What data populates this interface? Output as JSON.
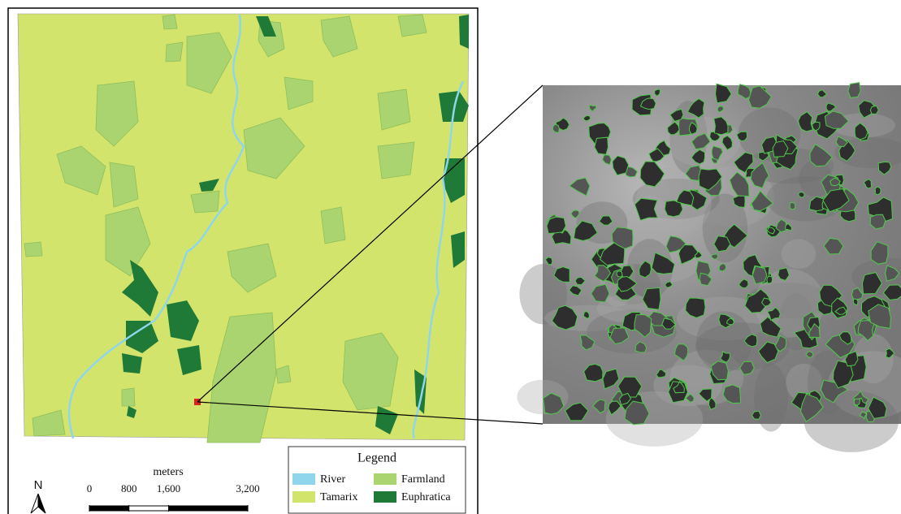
{
  "north_arrow": {
    "label": "N"
  },
  "scale_bar": {
    "unit": "meters",
    "range": [
      0,
      3200
    ],
    "ticks": [
      0,
      800,
      {
        "value": 1600,
        "label": "1,600"
      },
      {
        "value": 3200,
        "label": "3,200"
      }
    ]
  },
  "legend": {
    "title": "Legend",
    "items": [
      {
        "label": "River",
        "color": "#8fd6ec"
      },
      {
        "label": "Farmland",
        "color": "#a9d46f"
      },
      {
        "label": "Tamarix",
        "color": "#d3e46d"
      },
      {
        "label": "Euphratica",
        "color": "#1e7a36"
      }
    ]
  }
}
